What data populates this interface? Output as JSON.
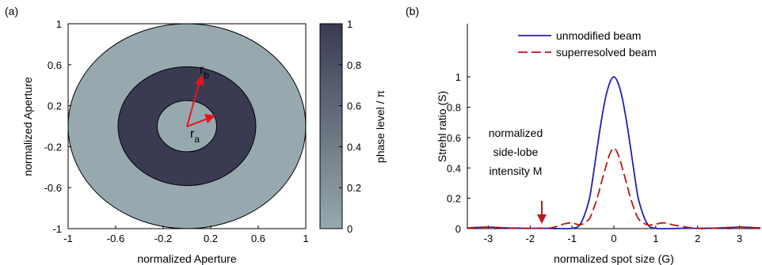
{
  "panel_a": {
    "label": "(a)",
    "annot_rb": "r",
    "annot_rb_sub": "b",
    "annot_ra": "r",
    "annot_ra_sub": "a"
  },
  "panel_b": {
    "label": "(b)",
    "annotation_lines": [
      "normalized",
      "side-lobe",
      "intensity M"
    ]
  },
  "colors": {
    "outer_region": "#97a9ae",
    "ring_region": "#3a3b52",
    "unmodified": "#1f1fb8",
    "superresolved": "#b8161c",
    "arrow": "#e8141c"
  },
  "chart_data": [
    {
      "type": "heatmap",
      "title": "",
      "xlabel": "normalized Aperture",
      "ylabel": "normalized Aperture",
      "xlim": [
        -1,
        1
      ],
      "ylim": [
        -1,
        1
      ],
      "xticks": [
        -1,
        -0.6,
        -0.2,
        0.2,
        0.6,
        1
      ],
      "yticks": [
        -1,
        -0.6,
        -0.2,
        0.2,
        0.6,
        1
      ],
      "xtick_labels": [
        "-1",
        "-0.6",
        "-0.2",
        "0.2",
        "0.6",
        "1"
      ],
      "ytick_labels": [
        "-1",
        "-0.6",
        "-0.2",
        "0.2",
        "0.6",
        "1"
      ],
      "regions": [
        {
          "r_min": 0,
          "r_max": 0.25,
          "phase": 0
        },
        {
          "r_min": 0.25,
          "r_max": 0.58,
          "phase": 1
        },
        {
          "r_min": 0.58,
          "r_max": 1.0,
          "phase": 0
        }
      ],
      "colorbar": {
        "label": "phase level / π",
        "range": [
          0,
          1
        ],
        "ticks": [
          0,
          0.2,
          0.4,
          0.6,
          0.8,
          1
        ],
        "tick_labels": [
          "0",
          "0.2",
          "0.4",
          "0.6",
          "0.8",
          "1"
        ]
      }
    },
    {
      "type": "line",
      "title": "",
      "xlabel": "normalized spot size (G)",
      "ylabel": "Strehl ratio (S)",
      "xlim": [
        -3.5,
        3.5
      ],
      "ylim": [
        0,
        1.35
      ],
      "xticks": [
        -3,
        -2,
        -1,
        0,
        1,
        2,
        3
      ],
      "yticks": [
        0,
        0.2,
        0.4,
        0.6,
        0.8,
        1
      ],
      "xtick_labels": [
        "-3",
        "-2",
        "-1",
        "0",
        "1",
        "2",
        "3"
      ],
      "ytick_labels": [
        "0",
        "0.2",
        "0.4",
        "0.6",
        "0.8",
        "1"
      ],
      "legend_position": "top-center",
      "series": [
        {
          "name": "unmodified beam",
          "style": "solid",
          "x": [
            -3.5,
            -3.0,
            -2.5,
            -2.0,
            -1.75,
            -1.5,
            -1.25,
            -1.0,
            -0.8,
            -0.6,
            -0.5,
            -0.4,
            -0.3,
            -0.2,
            -0.1,
            0,
            0.1,
            0.2,
            0.3,
            0.4,
            0.5,
            0.6,
            0.8,
            1.0,
            1.25,
            1.5,
            1.75,
            2.0,
            2.5,
            3.0,
            3.5
          ],
          "y": [
            0.005,
            0.01,
            0.004,
            0.002,
            0.003,
            0.001,
            0.0,
            0.002,
            0.03,
            0.18,
            0.34,
            0.53,
            0.71,
            0.86,
            0.96,
            1.0,
            0.96,
            0.86,
            0.71,
            0.53,
            0.34,
            0.18,
            0.03,
            0.002,
            0.0,
            0.001,
            0.003,
            0.002,
            0.004,
            0.01,
            0.005
          ]
        },
        {
          "name": "superresolved beam",
          "style": "dashed",
          "x": [
            -3.5,
            -3.0,
            -2.5,
            -2.0,
            -1.5,
            -1.2,
            -1.0,
            -0.8,
            -0.6,
            -0.5,
            -0.4,
            -0.3,
            -0.2,
            -0.1,
            0,
            0.1,
            0.2,
            0.3,
            0.4,
            0.5,
            0.6,
            0.8,
            1.0,
            1.2,
            1.5,
            2.0,
            2.5,
            3.0,
            3.5
          ],
          "y": [
            0.003,
            0.01,
            0.003,
            0.001,
            0.005,
            0.03,
            0.038,
            0.025,
            0.06,
            0.12,
            0.2,
            0.3,
            0.4,
            0.49,
            0.53,
            0.49,
            0.4,
            0.3,
            0.2,
            0.12,
            0.06,
            0.025,
            0.03,
            0.038,
            0.02,
            0.001,
            0.003,
            0.01,
            0.003
          ]
        }
      ]
    }
  ]
}
